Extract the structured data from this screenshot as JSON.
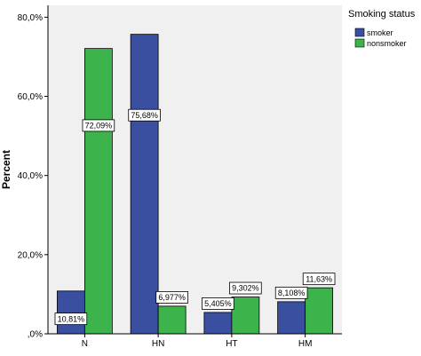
{
  "chart_data": {
    "type": "bar",
    "categories": [
      "N",
      "HN",
      "HT",
      "HM"
    ],
    "series": [
      {
        "name": "smoker",
        "values": [
          10.81,
          75.68,
          5.405,
          8.108
        ],
        "labels": [
          "10,81%",
          "75,68%",
          "5,405%",
          "8,108%"
        ],
        "color": "#3b4fa0"
      },
      {
        "name": "nonsmoker",
        "values": [
          72.09,
          6.977,
          9.302,
          11.63
        ],
        "labels": [
          "72,09%",
          "6,977%",
          "9,302%",
          "11,63%"
        ],
        "color": "#3cb44b"
      }
    ],
    "ylabel": "Percent",
    "ylim": [
      0,
      83
    ],
    "yticks": [
      0,
      20,
      40,
      60,
      80
    ],
    "ytick_labels": [
      ",0%",
      "20,0%",
      "40,0%",
      "60,0%",
      "80,0%"
    ],
    "legend": {
      "title": "Smoking status",
      "placement": "right"
    },
    "plot_background": "#f0f0f0"
  }
}
